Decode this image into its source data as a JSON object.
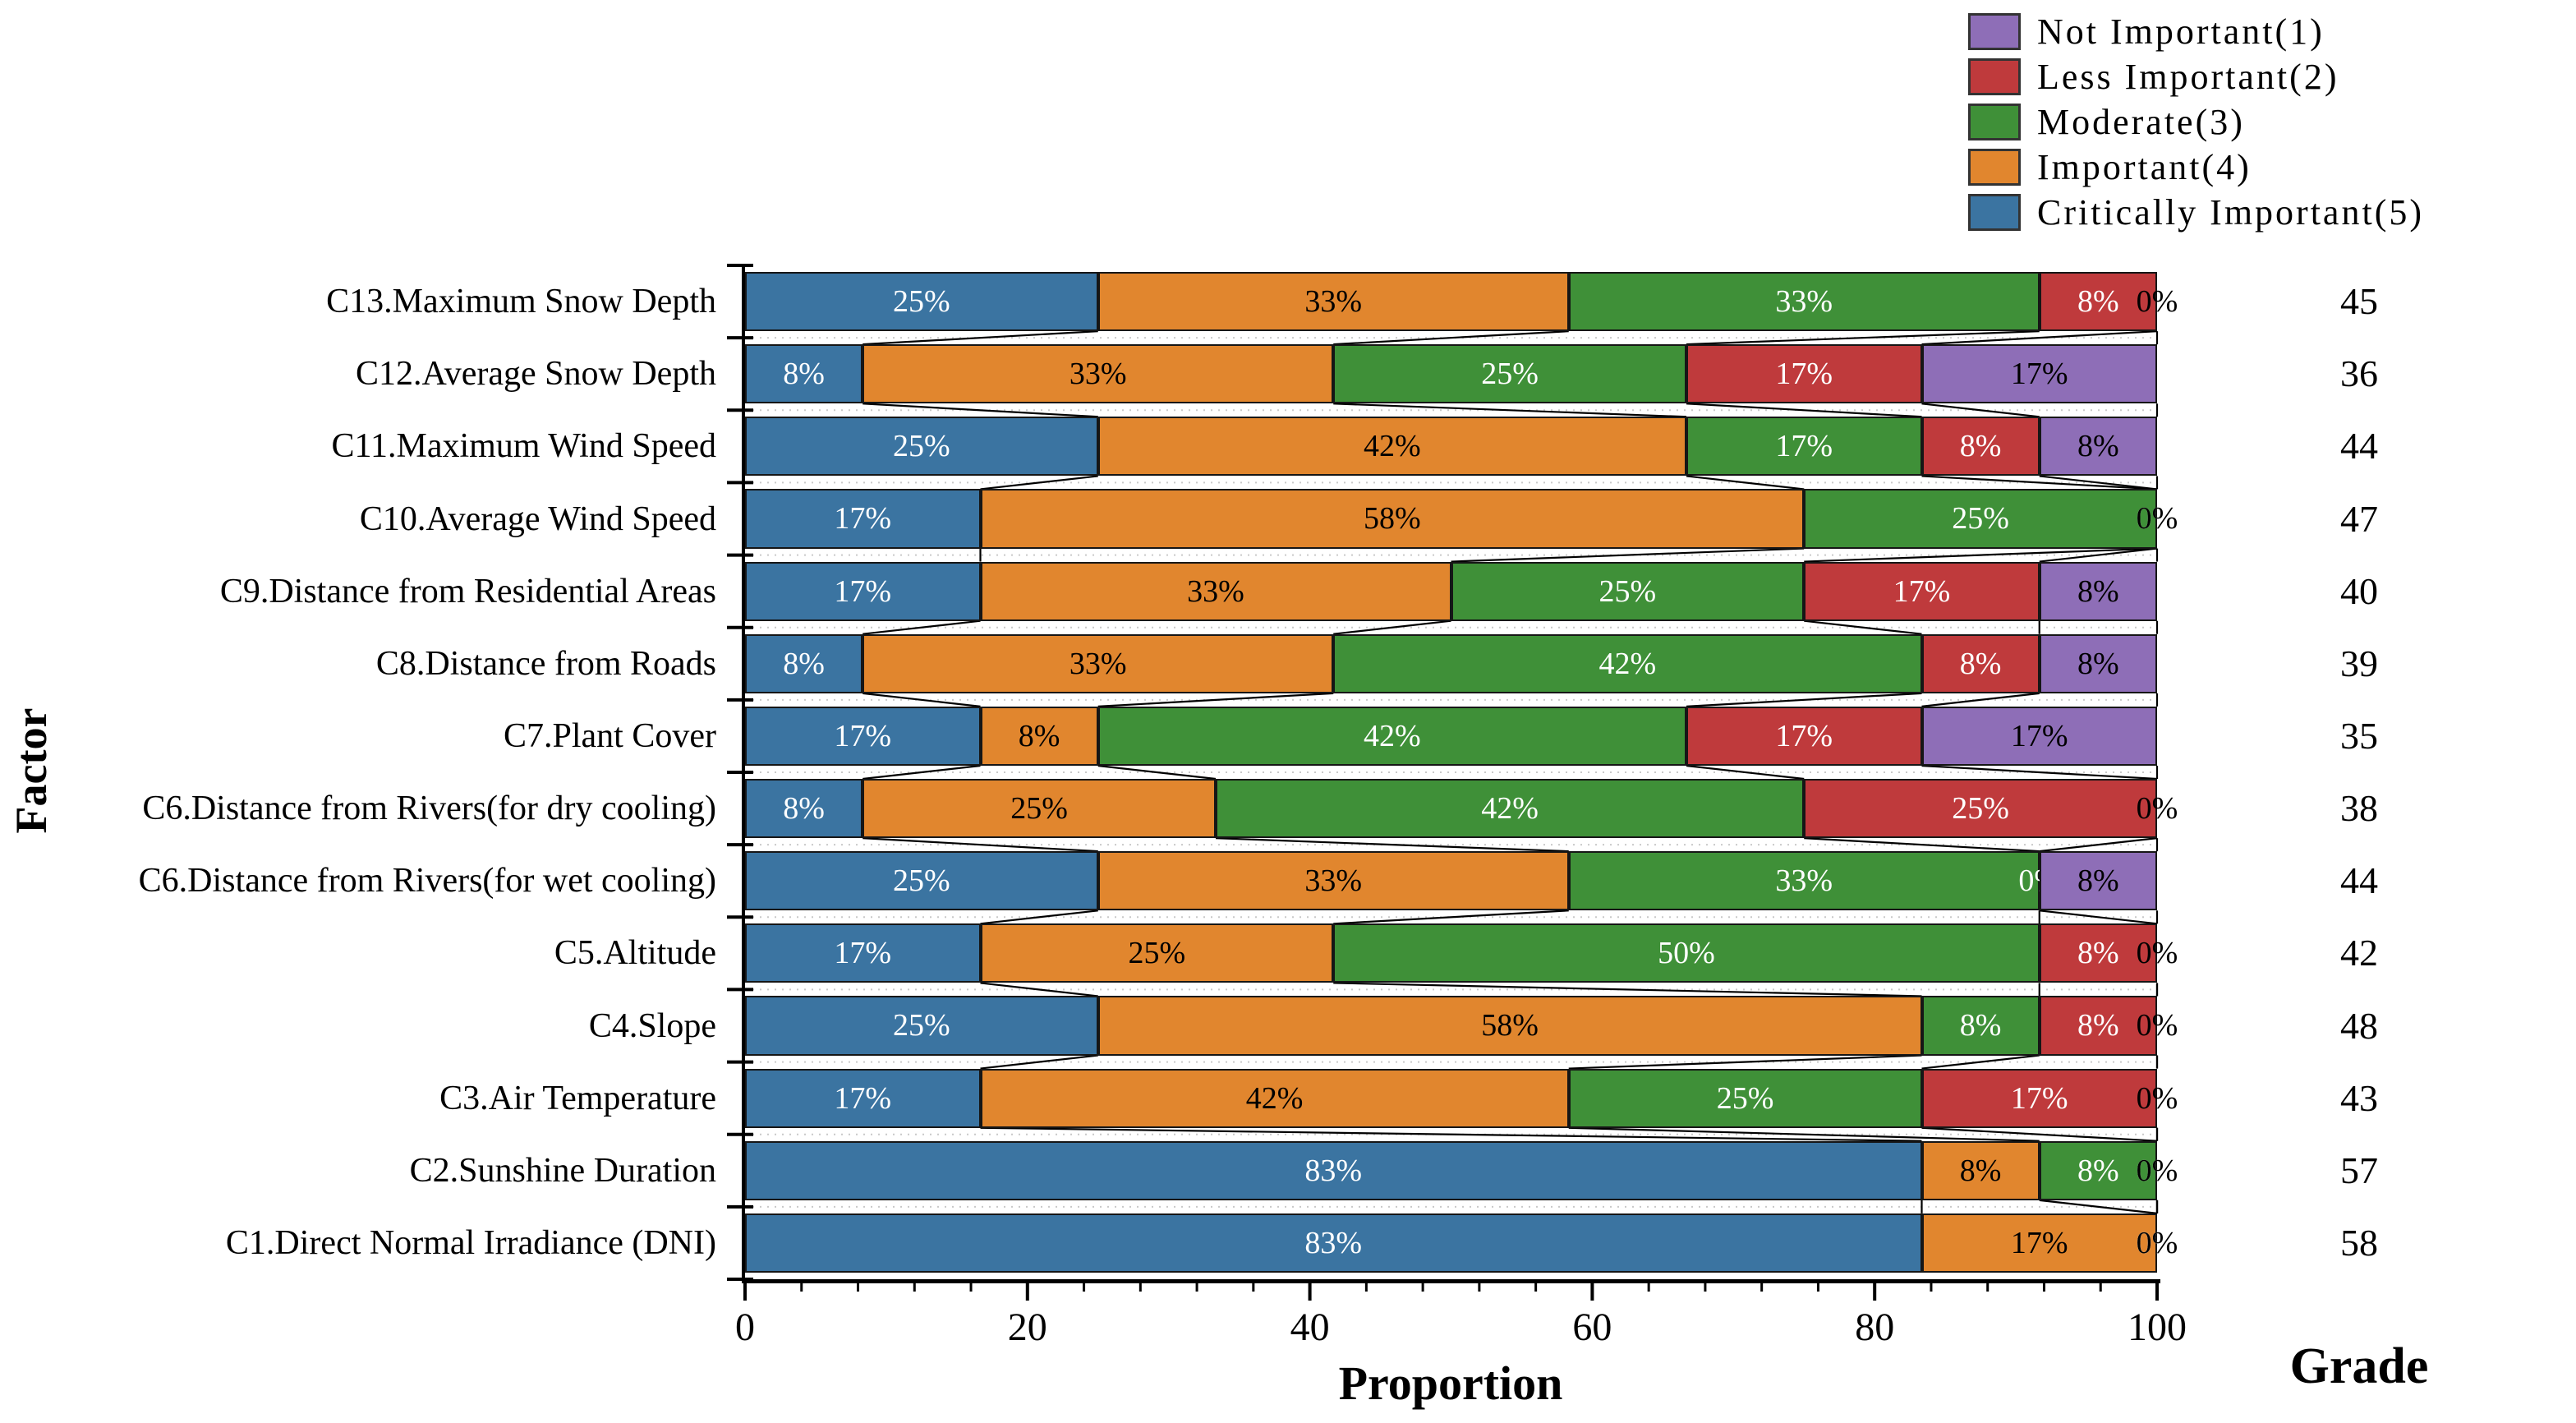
{
  "figure": {
    "xlabel": "Proportion",
    "ylabel": "Factor",
    "grade_label": "Grade"
  },
  "legend": {
    "position": "upper-right",
    "items": [
      {
        "label": "Not Important(1)",
        "color": "#8E6EB7"
      },
      {
        "label": "Less Important(2)",
        "color": "#BF3A3C"
      },
      {
        "label": "Moderate(3)",
        "color": "#3F9038"
      },
      {
        "label": "Important(4)",
        "color": "#E1862E"
      },
      {
        "label": "Critically Important(5)",
        "color": "#3B74A1"
      }
    ]
  },
  "chart_data": {
    "type": "bar",
    "variant": "horizontal-stacked-percentage",
    "xlabel": "Proportion",
    "ylabel": "Factor",
    "grade_column_label": "Grade",
    "xlim": [
      0,
      100
    ],
    "x_major_ticks": [
      0,
      20,
      40,
      60,
      80,
      100
    ],
    "x_minor_tick_step": 4,
    "grid": "dotted-horizontal-between-rows",
    "legend_position": "upper right",
    "categories_top_to_bottom": [
      "C13.Maximum Snow Depth",
      "C12.Average Snow Depth",
      "C11.Maximum Wind Speed",
      "C10.Average Wind Speed",
      "C9.Distance from Residential Areas",
      "C8.Distance from Roads",
      "C7.Plant Cover",
      "C6.Distance from Rivers(for dry cooling)",
      "C6.Distance from Rivers(for wet cooling)",
      "C5.Altitude",
      "C4.Slope",
      "C3.Air Temperature",
      "C2.Sunshine Duration",
      "C1.Direct Normal Irradiance (DNI)"
    ],
    "series": [
      {
        "name": "Critically Important(5)",
        "color": "#3B74A1",
        "label_color": "#FFFFFF",
        "values_pct": [
          25,
          8,
          25,
          17,
          17,
          8,
          17,
          8,
          25,
          17,
          25,
          17,
          83,
          83
        ]
      },
      {
        "name": "Important(4)",
        "color": "#E1862E",
        "label_color": "#000000",
        "values_pct": [
          33,
          33,
          42,
          58,
          33,
          33,
          8,
          25,
          33,
          25,
          58,
          42,
          8,
          17
        ]
      },
      {
        "name": "Moderate(3)",
        "color": "#3F9038",
        "label_color": "#FFFFFF",
        "values_pct": [
          33,
          25,
          17,
          25,
          25,
          42,
          42,
          42,
          33,
          50,
          8,
          25,
          8,
          0
        ]
      },
      {
        "name": "Less Important(2)",
        "color": "#BF3A3C",
        "label_color": "#FFFFFF",
        "values_pct": [
          8,
          17,
          8,
          0,
          17,
          8,
          17,
          25,
          0,
          8,
          8,
          17,
          0,
          0
        ]
      },
      {
        "name": "Not Important(1)",
        "color": "#8E6EB7",
        "label_color": "#000000",
        "values_pct": [
          0,
          17,
          8,
          0,
          8,
          8,
          17,
          0,
          8,
          0,
          0,
          0,
          0,
          0
        ]
      }
    ],
    "grades_top_to_bottom": [
      45,
      36,
      44,
      47,
      40,
      39,
      35,
      38,
      44,
      42,
      48,
      43,
      57,
      58
    ]
  }
}
